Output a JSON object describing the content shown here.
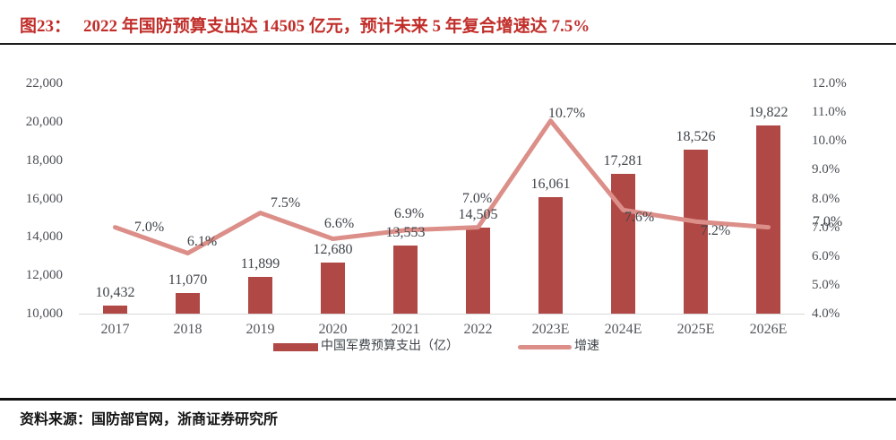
{
  "figure": {
    "label": "图23：",
    "title": "2022 年国防预算支出达 14505 亿元，预计未来 5 年复合增速达 7.5%"
  },
  "source": {
    "text": "资料来源：国防部官网，浙商证券研究所"
  },
  "colors": {
    "title": "#c12e2a",
    "bar": "#b04846",
    "line": "#dc8f89"
  },
  "chart_data": {
    "type": "bar+line",
    "title": "2022 年国防预算支出达 14505 亿元，预计未来 5 年复合增速达 7.5%",
    "categories": [
      "2017",
      "2018",
      "2019",
      "2020",
      "2021",
      "2022",
      "2023E",
      "2024E",
      "2025E",
      "2026E"
    ],
    "series": [
      {
        "name": "中国军费预算支出（亿）",
        "type": "bar",
        "axis": "left",
        "values": [
          10432,
          11070,
          11899,
          12680,
          13553,
          14505,
          16061,
          17281,
          18526,
          19822
        ],
        "labels": [
          "10,432",
          "11,070",
          "11,899",
          "12,680",
          "13,553",
          "14,505",
          "16,061",
          "17,281",
          "18,526",
          "19,822"
        ]
      },
      {
        "name": "增速",
        "type": "line",
        "axis": "right",
        "values": [
          7.0,
          6.1,
          7.5,
          6.6,
          6.9,
          7.0,
          10.7,
          7.6,
          7.2,
          7.0
        ],
        "labels": [
          "7.0%",
          "6.1%",
          "7.5%",
          "6.6%",
          "6.9%",
          "7.0%",
          "10.7%",
          "7.6%",
          "7.2%",
          "7.0%"
        ]
      }
    ],
    "left_axis": {
      "min": 10000,
      "max": 22000,
      "step": 2000,
      "ticks": [
        "10,000",
        "12,000",
        "14,000",
        "16,000",
        "18,000",
        "20,000",
        "22,000"
      ]
    },
    "right_axis": {
      "min": 4,
      "max": 12,
      "step": 1,
      "ticks": [
        "4.0%",
        "5.0%",
        "6.0%",
        "7.0%",
        "8.0%",
        "9.0%",
        "10.0%",
        "11.0%",
        "12.0%"
      ]
    },
    "grid": false,
    "legend_position": "bottom"
  }
}
